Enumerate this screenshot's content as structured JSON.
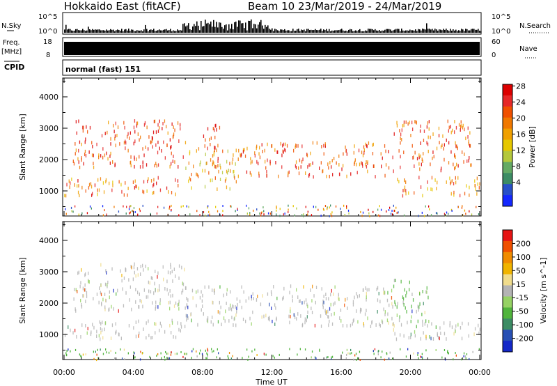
{
  "header": {
    "radar_title": "Hokkaido East (fitACF)",
    "beam_date": "Beam 10  23/Mar/2019 - 24/Mar/2019"
  },
  "top_strip": {
    "left_label": "N.Sky",
    "right_label": "N.Search",
    "left_ticks": [
      "10^5",
      "10^0"
    ],
    "right_ticks": [
      "10^5",
      "10^0"
    ]
  },
  "freq_strip": {
    "left_label": "Freq.",
    "left_unit": "[MHz]",
    "right_label": "Nave",
    "left_ticks": [
      "18",
      "8"
    ],
    "right_ticks": [
      "60",
      "0"
    ]
  },
  "cpid": {
    "label": "CPID",
    "mode": "normal (fast) 151"
  },
  "chart_data": [
    {
      "type": "heatmap",
      "panel": "power",
      "ylabel": "Slant Range [km]",
      "xlabel": "",
      "x_ticks": [
        "00:00",
        "04:00",
        "08:00",
        "12:00",
        "16:00",
        "20:00",
        "00:00"
      ],
      "xlim": [
        0,
        24
      ],
      "ylim": [
        200,
        4600
      ],
      "y_ticks": [
        1000,
        2000,
        3000,
        4000
      ],
      "colorbar_label": "Power [dB]",
      "colorbar_ticks": [
        "4",
        "8",
        "12",
        "16",
        "20",
        "24",
        "28"
      ],
      "colorbar_colors": [
        "#1428ff",
        "#2850c8",
        "#3c8c64",
        "#64aa64",
        "#b4c83c",
        "#e6c800",
        "#f0a000",
        "#f07800",
        "#f05000",
        "#e62828",
        "#dc0000"
      ],
      "bands": [
        {
          "t0": 0,
          "t1": 7,
          "r0": 900,
          "r1": 1500,
          "level": 0.65
        },
        {
          "t0": 7,
          "t1": 10,
          "r0": 1100,
          "r1": 2400,
          "level": 0.5
        },
        {
          "t0": 10,
          "t1": 19,
          "r0": 1500,
          "r1": 2600,
          "level": 0.7
        },
        {
          "t0": 19,
          "t1": 24,
          "r0": 900,
          "r1": 1500,
          "level": 0.6
        },
        {
          "t0": 0.5,
          "t1": 7,
          "r0": 1800,
          "r1": 3300,
          "level": 0.75
        },
        {
          "t0": 19,
          "t1": 23.5,
          "r0": 1700,
          "r1": 3300,
          "level": 0.7
        },
        {
          "t0": 8,
          "t1": 9,
          "r0": 1800,
          "r1": 3200,
          "level": 0.8
        }
      ]
    },
    {
      "type": "heatmap",
      "panel": "velocity",
      "ylabel": "Slant Range [km]",
      "xlabel": "Time UT",
      "x_ticks": [
        "00:00",
        "04:00",
        "08:00",
        "12:00",
        "16:00",
        "20:00",
        "00:00"
      ],
      "xlim": [
        0,
        24
      ],
      "ylim": [
        200,
        4600
      ],
      "y_ticks": [
        1000,
        2000,
        3000,
        4000
      ],
      "colorbar_label": "Velocity [m s^-1]",
      "colorbar_ticks": [
        "200",
        "100",
        "50",
        "15",
        "-15",
        "-50",
        "-100",
        "-200"
      ],
      "colorbar_colors": [
        "#1428c8",
        "#2850b4",
        "#3c8c64",
        "#50b43c",
        "#96d264",
        "#b4b4b4",
        "#f0dc8c",
        "#f0b400",
        "#f08c00",
        "#f05000",
        "#e61414"
      ],
      "bands": [
        {
          "t0": 0,
          "t1": 7,
          "r0": 900,
          "r1": 1500,
          "level": 0.5
        },
        {
          "t0": 7,
          "t1": 19,
          "r0": 1300,
          "r1": 2600,
          "level": 0.5
        },
        {
          "t0": 19,
          "t1": 24,
          "r0": 900,
          "r1": 1500,
          "level": 0.5
        },
        {
          "t0": 0.5,
          "t1": 7,
          "r0": 1800,
          "r1": 3300,
          "level": 0.5
        },
        {
          "t0": 19,
          "t1": 21,
          "r0": 1300,
          "r1": 2800,
          "level": 0.35
        }
      ]
    }
  ]
}
